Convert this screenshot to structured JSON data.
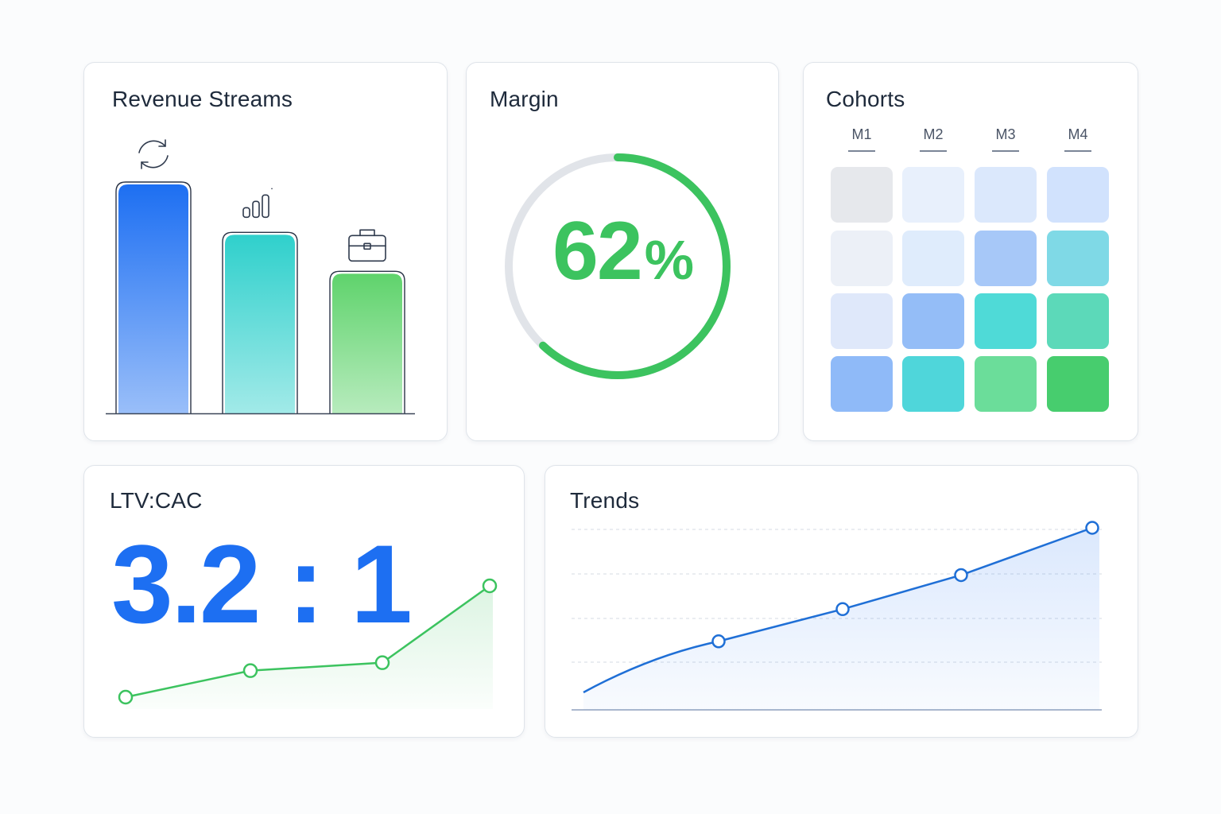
{
  "colors": {
    "blue": "#1d6ff2",
    "teal": "#2fd0cc",
    "green": "#3cc35f",
    "track": "#e1e4e9",
    "ink": "#1e2a3b"
  },
  "revenue": {
    "title": "Revenue Streams",
    "chart_data": {
      "type": "bar",
      "values": [
        100,
        78,
        61
      ],
      "icons": [
        "refresh-icon",
        "signal-bars-icon",
        "briefcase-icon"
      ],
      "colors": [
        "#1d6ff2",
        "#2fd0cc",
        "#5fd36c"
      ]
    }
  },
  "margin": {
    "title": "Margin",
    "value": "62",
    "unit": "%",
    "progress": 0.62
  },
  "cohorts": {
    "title": "Cohorts",
    "columns": [
      "M1",
      "M2",
      "M3",
      "M4"
    ],
    "cells": [
      [
        "#e6e8ec",
        "#e8f0fc",
        "#dbe8fc",
        "#d1e2fd"
      ],
      [
        "#ecf0f7",
        "#dfecfc",
        "#a7c8f8",
        "#7fd9e6"
      ],
      [
        "#dfe8fa",
        "#94bdf7",
        "#4fdad7",
        "#5cd9b9"
      ],
      [
        "#8fbaf8",
        "#4fd6da",
        "#6bdd9a",
        "#47cd6e"
      ]
    ]
  },
  "ltv": {
    "title": "LTV:CAC",
    "value": "3.2 : 1",
    "chart_data": {
      "type": "line",
      "values": [
        1.0,
        2.0,
        2.3,
        5.2
      ]
    }
  },
  "trends": {
    "title": "Trends",
    "chart_data": {
      "type": "area",
      "values": [
        0.0,
        0.27,
        0.44,
        0.62,
        0.87
      ],
      "markers": [
        false,
        true,
        true,
        true,
        true
      ],
      "ylim": [
        0,
        1.0
      ],
      "grid": true
    }
  }
}
